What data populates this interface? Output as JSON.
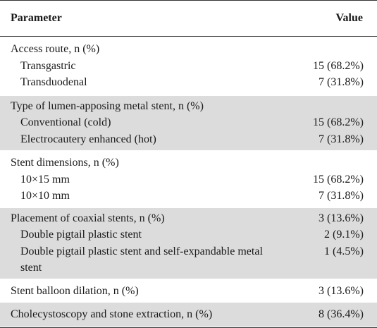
{
  "header": {
    "parameter": "Parameter",
    "value": "Value"
  },
  "sections": {
    "access": {
      "title": "Access route, n (%)",
      "rows": [
        {
          "label": "Transgastric",
          "value": "15 (68.2%)"
        },
        {
          "label": "Transduodenal",
          "value": "7 (31.8%)"
        }
      ]
    },
    "stent_type": {
      "title": "Type of lumen-apposing metal stent, n (%)",
      "rows": [
        {
          "label": "Conventional (cold)",
          "value": "15 (68.2%)"
        },
        {
          "label": "Electrocautery enhanced (hot)",
          "value": "7 (31.8%)"
        }
      ]
    },
    "dimensions": {
      "title": "Stent dimensions, n (%)",
      "rows": [
        {
          "label": "10×15 mm",
          "value": "15 (68.2%)"
        },
        {
          "label": "10×10 mm",
          "value": "7 (31.8%)"
        }
      ]
    },
    "coaxial": {
      "title": "Placement of coaxial stents, n (%)",
      "title_value": "3 (13.6%)",
      "rows": [
        {
          "label": "Double pigtail plastic stent",
          "value": "2 (9.1%)"
        },
        {
          "label": "Double pigtail plastic stent and self-expandable metal stent",
          "value": "1 (4.5%)"
        }
      ]
    },
    "balloon": {
      "title": "Stent balloon dilation, n (%)",
      "value": "3 (13.6%)"
    },
    "cholecystoscopy": {
      "title": "Cholecystoscopy and stone extraction, n (%)",
      "value": "8 (36.4%)"
    }
  },
  "colors": {
    "shaded_row": "#dcdcdc",
    "rule": "#333333",
    "text": "#1a1a1a"
  }
}
